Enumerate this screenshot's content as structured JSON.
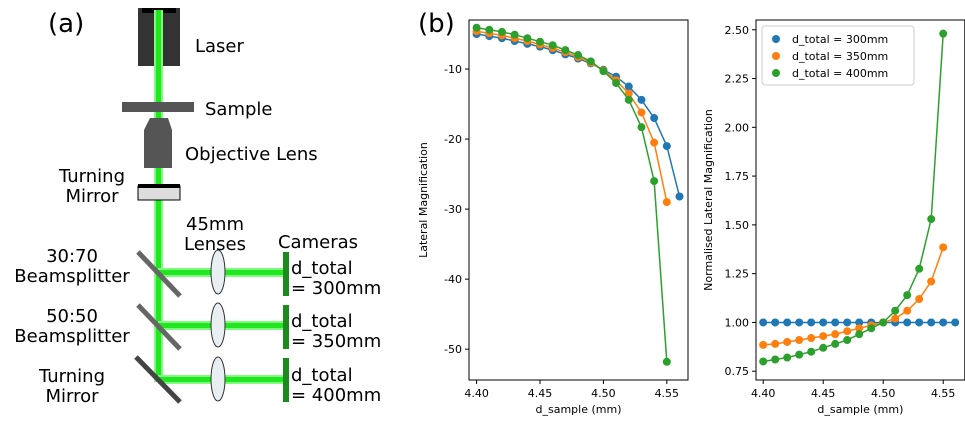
{
  "diagram": {
    "panel_label": "(a)",
    "laser": "Laser",
    "sample": "Sample",
    "objective": "Objective Lens",
    "top_mirror": [
      "Turning",
      "Mirror"
    ],
    "lenses": [
      "45mm",
      "Lenses"
    ],
    "cameras": "Cameras",
    "splitter_1": [
      "30:70",
      "Beamsplitter"
    ],
    "splitter_2": [
      "50:50",
      "Beamsplitter"
    ],
    "bottom_mirror": [
      "Turning",
      "Mirror"
    ],
    "camera_1": [
      "d_total",
      "= 300mm"
    ],
    "camera_2": [
      "d_total",
      "= 350mm"
    ],
    "camera_3": [
      "d_total",
      "= 400mm"
    ]
  },
  "panel_label": "(b)",
  "chart_data": [
    {
      "type": "line",
      "xlabel": "d_sample (mm)",
      "ylabel": "Lateral Magnification",
      "x": [
        4.4,
        4.41,
        4.42,
        4.43,
        4.44,
        4.45,
        4.46,
        4.47,
        4.48,
        4.49,
        4.5,
        4.51,
        4.52,
        4.53,
        4.54,
        4.55,
        4.56
      ],
      "series": [
        {
          "color": "#1f77b4",
          "values": [
            -5.0,
            -5.3,
            -5.6,
            -6.0,
            -6.4,
            -6.8,
            -7.3,
            -7.9,
            -8.5,
            -9.2,
            -10.1,
            -11.1,
            -12.5,
            -14.4,
            -17.0,
            -21.0,
            -28.2
          ]
        },
        {
          "color": "#ff7f0e",
          "values": [
            -4.6,
            -4.9,
            -5.2,
            -5.6,
            -6.0,
            -6.5,
            -7.0,
            -7.6,
            -8.3,
            -9.1,
            -10.2,
            -11.6,
            -13.5,
            -16.2,
            -20.5,
            -29.0,
            null
          ]
        },
        {
          "color": "#2ca02c",
          "values": [
            -4.1,
            -4.4,
            -4.7,
            -5.1,
            -5.6,
            -6.1,
            -6.6,
            -7.3,
            -8.0,
            -8.9,
            -10.3,
            -12.0,
            -14.4,
            -18.3,
            -26.0,
            -51.8,
            null
          ]
        }
      ],
      "xlim": [
        4.394,
        4.5667
      ],
      "ylim": [
        -54.4,
        -3
      ],
      "xticks": [
        {
          "value": 4.4,
          "label": "4.40"
        },
        {
          "value": 4.45,
          "label": "4.45"
        },
        {
          "value": 4.5,
          "label": "4.50"
        },
        {
          "value": 4.55,
          "label": "4.55"
        }
      ],
      "yticks": [
        -50,
        -40,
        -30,
        -20,
        -10
      ]
    },
    {
      "type": "line",
      "xlabel": "d_sample (mm)",
      "ylabel": "Normalised Lateral Magnification",
      "legend": "upper left",
      "x": [
        4.4,
        4.41,
        4.42,
        4.43,
        4.44,
        4.45,
        4.46,
        4.47,
        4.48,
        4.49,
        4.5,
        4.51,
        4.52,
        4.53,
        4.54,
        4.55,
        4.56
      ],
      "series": [
        {
          "name": "d_total = 300mm",
          "color": "#1f77b4",
          "values": [
            1,
            1,
            1,
            1,
            1,
            1,
            1,
            1,
            1,
            1,
            1,
            1,
            1,
            1,
            1,
            1,
            1
          ]
        },
        {
          "name": "d_total = 350mm",
          "color": "#ff7f0e",
          "values": [
            0.885,
            0.89,
            0.9,
            0.91,
            0.92,
            0.93,
            0.94,
            0.955,
            0.97,
            0.985,
            1.0,
            1.02,
            1.06,
            1.12,
            1.21,
            1.385,
            null
          ]
        },
        {
          "name": "d_total = 400mm",
          "color": "#2ca02c",
          "values": [
            0.8,
            0.81,
            0.82,
            0.835,
            0.85,
            0.87,
            0.89,
            0.91,
            0.94,
            0.97,
            1.0,
            1.06,
            1.14,
            1.275,
            1.53,
            2.48,
            null
          ]
        }
      ],
      "xlim": [
        4.394,
        4.568
      ],
      "ylim": [
        0.705,
        2.55
      ],
      "xticks": [
        {
          "value": 4.4,
          "label": "4.40"
        },
        {
          "value": 4.45,
          "label": "4.45"
        },
        {
          "value": 4.5,
          "label": "4.50"
        },
        {
          "value": 4.55,
          "label": "4.55"
        }
      ],
      "yticks": [
        {
          "value": 0.75,
          "label": "0.75"
        },
        {
          "value": 1.0,
          "label": "1.00"
        },
        {
          "value": 1.25,
          "label": "1.25"
        },
        {
          "value": 1.5,
          "label": "1.50"
        },
        {
          "value": 1.75,
          "label": "1.75"
        },
        {
          "value": 2.0,
          "label": "2.00"
        },
        {
          "value": 2.25,
          "label": "2.25"
        },
        {
          "value": 2.5,
          "label": "2.50"
        }
      ]
    }
  ]
}
